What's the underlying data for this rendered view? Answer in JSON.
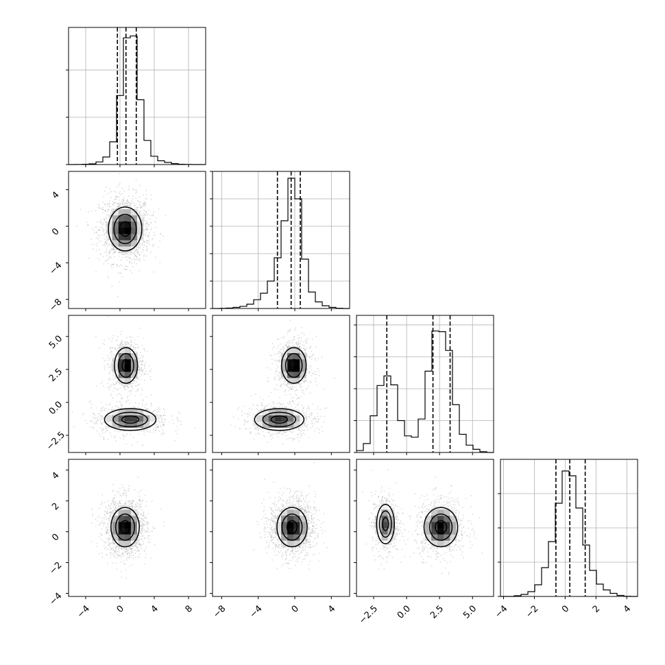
{
  "chart_data": {
    "type": "corner",
    "parameters": [
      {
        "range": [
          -6,
          10
        ],
        "ticks": [
          -4,
          0,
          4,
          8
        ],
        "tick_labels": [
          "−4",
          "0",
          "4",
          "8"
        ],
        "quantiles": [
          -0.3,
          0.7,
          1.9
        ]
      },
      {
        "range": [
          -9,
          6
        ],
        "ticks": [
          -8,
          -4,
          0,
          4
        ],
        "tick_labels": [
          "−8",
          "−4",
          "0",
          "4"
        ],
        "quantiles": [
          -1.9,
          -0.4,
          0.6
        ]
      },
      {
        "range": [
          -3.8,
          6.6
        ],
        "ticks": [
          -2.5,
          0,
          2.5,
          5
        ],
        "tick_labels": [
          "−2.5",
          "0.0",
          "2.5",
          "5.0"
        ],
        "quantiles": [
          -1.5,
          2.0,
          3.3
        ]
      },
      {
        "range": [
          -4.2,
          4.7
        ],
        "ticks": [
          -4,
          -2,
          0,
          2,
          4
        ],
        "tick_labels": [
          "−4",
          "−2",
          "0",
          "2",
          "4"
        ],
        "quantiles": [
          -0.6,
          0.3,
          1.3
        ]
      }
    ],
    "histograms": [
      {
        "bins": [
          -6.0,
          -5.2,
          -4.4,
          -3.6,
          -2.8,
          -2.0,
          -1.2,
          -0.4,
          0.4,
          1.2,
          2.0,
          2.8,
          3.6,
          4.4,
          5.2,
          6.0,
          6.8,
          7.6,
          8.4,
          9.2,
          10.0
        ],
        "counts": [
          0,
          2,
          5,
          14,
          55,
          160,
          480,
          1460,
          2680,
          2720,
          1370,
          510,
          175,
          80,
          45,
          20,
          5,
          2,
          0,
          0
        ],
        "ymax": 2900,
        "yticks": [
          0,
          1000,
          2000
        ]
      },
      {
        "bins": [
          -9.0,
          -8.25,
          -7.5,
          -6.75,
          -6.0,
          -5.25,
          -4.5,
          -3.75,
          -3.0,
          -2.25,
          -1.5,
          -0.75,
          0.0,
          0.75,
          1.5,
          2.25,
          3.0,
          3.75,
          4.5,
          5.25,
          6.0
        ],
        "counts": [
          0,
          8,
          15,
          40,
          80,
          160,
          320,
          560,
          1000,
          1850,
          3200,
          4750,
          4000,
          1800,
          600,
          240,
          100,
          40,
          10,
          0
        ],
        "ymax": 5000,
        "yticks": [
          0,
          1000,
          2000,
          3000,
          4000,
          5000
        ]
      },
      {
        "bins": [
          -3.8,
          -3.28,
          -2.76,
          -2.24,
          -1.72,
          -1.2,
          -0.68,
          -0.16,
          0.36,
          0.88,
          1.4,
          1.92,
          2.44,
          2.96,
          3.48,
          4.0,
          4.52,
          5.04,
          5.56,
          6.08,
          6.6
        ],
        "counts": [
          60,
          280,
          1150,
          2100,
          2400,
          2120,
          1000,
          520,
          480,
          1050,
          2550,
          3810,
          3790,
          3200,
          1500,
          570,
          230,
          100,
          25,
          0
        ],
        "ymax": 4300,
        "yticks": [
          0,
          1000,
          2000,
          3000,
          4000
        ]
      },
      {
        "bins": [
          -4.2,
          -3.755,
          -3.31,
          -2.865,
          -2.42,
          -1.975,
          -1.53,
          -1.085,
          -0.64,
          -0.195,
          0.25,
          0.695,
          1.14,
          1.585,
          2.03,
          2.475,
          2.92,
          3.365,
          3.81,
          4.255,
          4.7
        ],
        "counts": [
          0,
          0,
          10,
          30,
          70,
          170,
          420,
          800,
          1360,
          1830,
          1760,
          1290,
          750,
          380,
          180,
          95,
          45,
          15,
          3,
          0
        ],
        "ymax": 2000,
        "yticks": [
          0,
          500,
          1000,
          1500
        ]
      }
    ],
    "pairs": [
      {
        "row": 1,
        "col": 0,
        "modes": [
          {
            "mx": 0.6,
            "my": -0.3,
            "sx": 1.3,
            "sy": 1.6,
            "w": 1
          }
        ]
      },
      {
        "row": 2,
        "col": 0,
        "modes": [
          {
            "mx": 0.7,
            "my": 2.8,
            "sx": 0.9,
            "sy": 0.9,
            "w": 0.55
          },
          {
            "mx": 1.2,
            "my": -1.3,
            "sx": 2.0,
            "sy": 0.55,
            "w": 0.45
          }
        ]
      },
      {
        "row": 2,
        "col": 1,
        "modes": [
          {
            "mx": -0.1,
            "my": 2.8,
            "sx": 0.9,
            "sy": 0.9,
            "w": 0.55
          },
          {
            "mx": -1.7,
            "my": -1.3,
            "sx": 1.8,
            "sy": 0.55,
            "w": 0.45
          }
        ]
      },
      {
        "row": 3,
        "col": 0,
        "modes": [
          {
            "mx": 0.6,
            "my": 0.3,
            "sx": 1.1,
            "sy": 0.85,
            "w": 1
          }
        ]
      },
      {
        "row": 3,
        "col": 1,
        "modes": [
          {
            "mx": -0.3,
            "my": 0.3,
            "sx": 1.1,
            "sy": 0.85,
            "w": 1
          }
        ]
      },
      {
        "row": 3,
        "col": 2,
        "modes": [
          {
            "mx": -1.6,
            "my": 0.5,
            "sx": 0.45,
            "sy": 0.85,
            "w": 0.45
          },
          {
            "mx": 2.6,
            "my": 0.3,
            "sx": 0.85,
            "sy": 0.85,
            "w": 0.55
          }
        ]
      }
    ],
    "contour_levels": [
      0.5,
      1.0,
      1.5
    ]
  }
}
